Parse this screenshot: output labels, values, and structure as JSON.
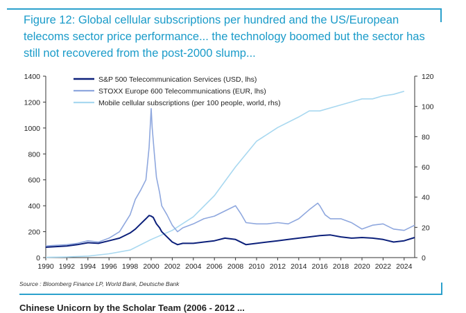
{
  "figure": {
    "title": "Figure 12: Global cellular subscriptions per hundred and the US/European telecoms sector price performance... the technology boomed but the sector has still not recovered from the post-2000 slump...",
    "source": "Source : Bloomberg Finance LP, World Bank, Deutsche Bank",
    "next_caption": "Chinese Unicorn by the Scholar Team (2006 - 2012 ..."
  },
  "colors": {
    "sp500": "#0b1f7a",
    "stoxx": "#8ea7de",
    "mobile": "#a8d8f0",
    "accent": "#2aa0cc"
  },
  "chart_data": {
    "type": "line",
    "title": "",
    "xlabel": "",
    "ylabel": "",
    "x_ticks": [
      "1990",
      "1992",
      "1994",
      "1996",
      "1998",
      "2000",
      "2002",
      "2004",
      "2006",
      "2008",
      "2010",
      "2012",
      "2014",
      "2016",
      "2018",
      "2020",
      "2022",
      "2024"
    ],
    "xlim": [
      1990,
      2025
    ],
    "ylim": [
      0,
      1400
    ],
    "y_ticks_left": [
      "0",
      "200",
      "400",
      "600",
      "800",
      "1000",
      "1200",
      "1400"
    ],
    "ylim_right": [
      0,
      120
    ],
    "y_ticks_right": [
      "0",
      "20",
      "40",
      "60",
      "80",
      "100",
      "120"
    ],
    "legend_position": "top-left",
    "series": [
      {
        "name": "S&P 500 Telecommunication Services (USD, lhs)",
        "axis": "left",
        "x": [
          1990,
          1991,
          1992,
          1993,
          1994,
          1995,
          1996,
          1997,
          1998,
          1998.5,
          1999,
          1999.5,
          1999.8,
          2000,
          2000.2,
          2000.5,
          2000.8,
          2001,
          2001.5,
          2002,
          2002.5,
          2003,
          2004,
          2005,
          2006,
          2007,
          2008,
          2009,
          2010,
          2011,
          2012,
          2013,
          2014,
          2015,
          2016,
          2017,
          2018,
          2019,
          2020,
          2021,
          2022,
          2023,
          2024,
          2025
        ],
        "y": [
          80,
          85,
          90,
          100,
          115,
          110,
          130,
          150,
          190,
          220,
          260,
          300,
          325,
          320,
          310,
          260,
          230,
          200,
          160,
          120,
          100,
          110,
          110,
          120,
          130,
          150,
          140,
          100,
          110,
          120,
          130,
          140,
          150,
          160,
          170,
          175,
          160,
          150,
          155,
          150,
          140,
          120,
          130,
          155
        ]
      },
      {
        "name": "STOXX Europe 600 Telecommunications (EUR, lhs)",
        "axis": "left",
        "x": [
          1990,
          1991,
          1992,
          1993,
          1994,
          1995,
          1996,
          1997,
          1998,
          1998.5,
          1999,
          1999.5,
          1999.8,
          2000,
          2000.1,
          2000.3,
          2000.5,
          2000.8,
          2001,
          2001.5,
          2002,
          2002.5,
          2003,
          2004,
          2005,
          2006,
          2007,
          2008,
          2008.5,
          2009,
          2010,
          2011,
          2012,
          2013,
          2014,
          2015,
          2015.8,
          2016,
          2016.5,
          2017,
          2018,
          2019,
          2020,
          2021,
          2022,
          2023,
          2024,
          2025
        ],
        "y": [
          90,
          95,
          100,
          110,
          130,
          120,
          150,
          200,
          330,
          450,
          520,
          600,
          850,
          1150,
          1000,
          800,
          620,
          500,
          400,
          330,
          250,
          200,
          230,
          260,
          300,
          320,
          360,
          400,
          340,
          270,
          260,
          260,
          270,
          260,
          300,
          370,
          420,
          400,
          330,
          300,
          300,
          270,
          220,
          250,
          260,
          220,
          210,
          250
        ]
      },
      {
        "name": "Mobile cellular subscriptions (per 100 people, world, rhs)",
        "axis": "right",
        "x": [
          1990,
          1992,
          1994,
          1996,
          1998,
          2000,
          2002,
          2004,
          2006,
          2008,
          2010,
          2012,
          2014,
          2015,
          2016,
          2018,
          2020,
          2021,
          2022,
          2023,
          2024
        ],
        "y": [
          0.2,
          0.4,
          1,
          2.5,
          5,
          12,
          18,
          27,
          41,
          60,
          77,
          86,
          93,
          97,
          97,
          101,
          105,
          105,
          107,
          108,
          110
        ]
      }
    ]
  }
}
